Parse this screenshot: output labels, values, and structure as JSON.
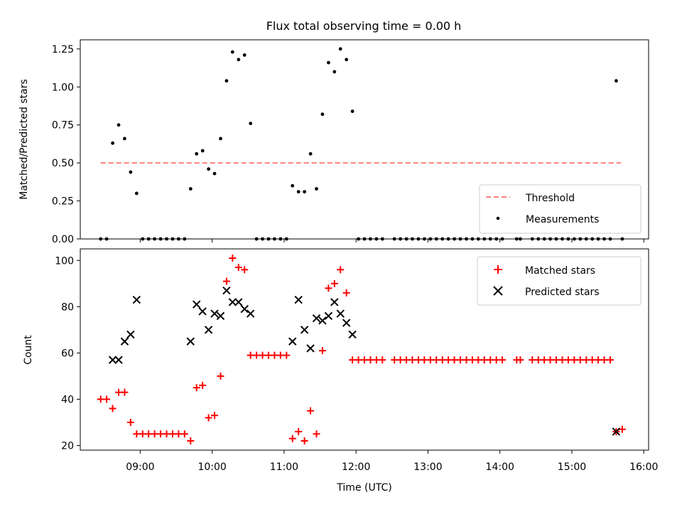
{
  "chart_data": [
    {
      "type": "scatter",
      "title": "Flux total observing time = 0.00 h",
      "xlabel": "",
      "ylabel": "Matched/Predicted stars",
      "xlim": [
        "08:10",
        "16:04"
      ],
      "ylim": [
        0,
        1.31
      ],
      "yticks": [
        "0.00",
        "0.25",
        "0.50",
        "0.75",
        "1.00",
        "1.25"
      ],
      "grid": false,
      "legend_position": "lower-right",
      "threshold": {
        "name": "Threshold",
        "value": 0.5,
        "x_start": "08:27",
        "x_end": "15:41",
        "color": "#ff8080"
      },
      "series": [
        {
          "name": "Measurements",
          "color": "#000000",
          "x": [
            "08:27",
            "08:32",
            "08:37",
            "08:42",
            "08:47",
            "08:52",
            "08:57",
            "09:02",
            "09:07",
            "09:12",
            "09:17",
            "09:22",
            "09:27",
            "09:32",
            "09:37",
            "09:42",
            "09:47",
            "09:52",
            "09:57",
            "10:02",
            "10:07",
            "10:12",
            "10:17",
            "10:22",
            "10:27",
            "10:32",
            "10:37",
            "10:42",
            "10:47",
            "10:52",
            "10:57",
            "11:02",
            "11:07",
            "11:12",
            "11:17",
            "11:22",
            "11:27",
            "11:32",
            "11:37",
            "11:42",
            "11:47",
            "11:52",
            "11:57",
            "12:02",
            "12:07",
            "12:12",
            "12:17",
            "12:22",
            "12:32",
            "12:37",
            "12:42",
            "12:47",
            "12:52",
            "12:57",
            "13:02",
            "13:07",
            "13:12",
            "13:17",
            "13:22",
            "13:27",
            "13:32",
            "13:37",
            "13:42",
            "13:47",
            "13:52",
            "13:57",
            "14:02",
            "14:14",
            "14:17",
            "14:27",
            "14:32",
            "14:37",
            "14:42",
            "14:47",
            "14:52",
            "14:57",
            "15:02",
            "15:07",
            "15:12",
            "15:17",
            "15:22",
            "15:27",
            "15:32",
            "15:37",
            "15:42"
          ],
          "y": [
            0,
            0,
            0.63,
            0.75,
            0.66,
            0.44,
            0.3,
            0,
            0,
            0,
            0,
            0,
            0,
            0,
            0,
            0.33,
            0.56,
            0.58,
            0.46,
            0.43,
            0.66,
            1.04,
            1.23,
            1.18,
            1.21,
            0.76,
            0,
            0,
            0,
            0,
            0,
            0,
            0.35,
            0.31,
            0.31,
            0.56,
            0.33,
            0.82,
            1.16,
            1.1,
            1.25,
            1.18,
            0.84,
            0,
            0,
            0,
            0,
            0,
            0,
            0,
            0,
            0,
            0,
            0,
            0,
            0,
            0,
            0,
            0,
            0,
            0,
            0,
            0,
            0,
            0,
            0,
            0,
            0,
            0,
            0,
            0,
            0,
            0,
            0,
            0,
            0,
            0,
            0,
            0,
            0,
            0,
            0,
            0,
            1.04,
            0
          ]
        }
      ]
    },
    {
      "type": "scatter",
      "title": "",
      "xlabel": "Time (UTC)",
      "ylabel": "Count",
      "xlim": [
        "08:10",
        "16:04"
      ],
      "ylim": [
        18,
        105
      ],
      "yticks": [
        "20",
        "40",
        "60",
        "80",
        "100"
      ],
      "xticks": [
        "09:00",
        "10:00",
        "11:00",
        "12:00",
        "13:00",
        "14:00",
        "15:00",
        "16:00"
      ],
      "grid": false,
      "legend_position": "upper-right",
      "series": [
        {
          "name": "Matched stars",
          "color": "#ff0000",
          "marker": "+",
          "x": [
            "08:27",
            "08:32",
            "08:37",
            "08:42",
            "08:47",
            "08:52",
            "08:57",
            "09:02",
            "09:07",
            "09:12",
            "09:17",
            "09:22",
            "09:27",
            "09:32",
            "09:37",
            "09:42",
            "09:47",
            "09:52",
            "09:57",
            "10:02",
            "10:07",
            "10:12",
            "10:17",
            "10:22",
            "10:27",
            "10:32",
            "10:37",
            "10:42",
            "10:47",
            "10:52",
            "10:57",
            "11:02",
            "11:07",
            "11:12",
            "11:17",
            "11:22",
            "11:27",
            "11:32",
            "11:37",
            "11:42",
            "11:47",
            "11:52",
            "11:57",
            "12:02",
            "12:07",
            "12:12",
            "12:17",
            "12:22",
            "12:32",
            "12:37",
            "12:42",
            "12:47",
            "12:52",
            "12:57",
            "13:02",
            "13:07",
            "13:12",
            "13:17",
            "13:22",
            "13:27",
            "13:32",
            "13:37",
            "13:42",
            "13:47",
            "13:52",
            "13:57",
            "14:02",
            "14:14",
            "14:17",
            "14:27",
            "14:32",
            "14:37",
            "14:42",
            "14:47",
            "14:52",
            "14:57",
            "15:02",
            "15:07",
            "15:12",
            "15:17",
            "15:22",
            "15:27",
            "15:32",
            "15:37",
            "15:42"
          ],
          "y": [
            40,
            40,
            36,
            43,
            43,
            30,
            25,
            25,
            25,
            25,
            25,
            25,
            25,
            25,
            25,
            22,
            45,
            46,
            32,
            33,
            50,
            91,
            101,
            97,
            96,
            59,
            59,
            59,
            59,
            59,
            59,
            59,
            23,
            26,
            22,
            35,
            25,
            61,
            88,
            90,
            96,
            86,
            57,
            57,
            57,
            57,
            57,
            57,
            57,
            57,
            57,
            57,
            57,
            57,
            57,
            57,
            57,
            57,
            57,
            57,
            57,
            57,
            57,
            57,
            57,
            57,
            57,
            57,
            57,
            57,
            57,
            57,
            57,
            57,
            57,
            57,
            57,
            57,
            57,
            57,
            57,
            57,
            57,
            26,
            27
          ]
        },
        {
          "name": "Predicted stars",
          "color": "#000000",
          "marker": "x",
          "x": [
            "08:37",
            "08:42",
            "08:47",
            "08:52",
            "08:57",
            "09:42",
            "09:47",
            "09:52",
            "09:57",
            "10:02",
            "10:07",
            "10:12",
            "10:17",
            "10:22",
            "10:27",
            "10:32",
            "11:07",
            "11:12",
            "11:17",
            "11:22",
            "11:27",
            "11:32",
            "11:37",
            "11:42",
            "11:47",
            "11:52",
            "11:57",
            "15:37"
          ],
          "y": [
            57,
            57,
            65,
            68,
            83,
            65,
            81,
            78,
            70,
            77,
            76,
            87,
            82,
            82,
            79,
            77,
            65,
            83,
            70,
            62,
            75,
            74,
            76,
            82,
            77,
            73,
            68,
            26
          ]
        }
      ]
    }
  ]
}
